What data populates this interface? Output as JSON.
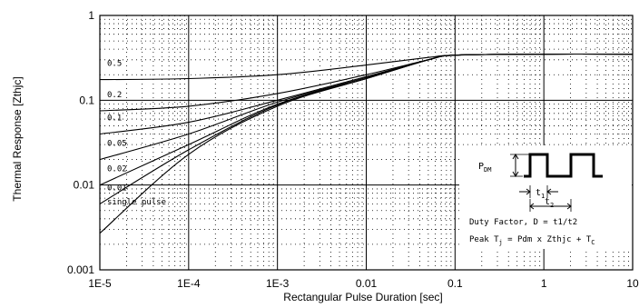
{
  "chart_data": {
    "type": "line",
    "xlabel": "Rectangular Pulse Duration [sec]",
    "ylabel": "Thermal Response [Zthjc]",
    "xscale": "log",
    "yscale": "log",
    "xlim": [
      1e-05,
      10
    ],
    "ylim": [
      0.001,
      1
    ],
    "grid": "major and minor (dotted)",
    "x_tick_labels": [
      "1E-5",
      "1E-4",
      "1E-3",
      "0.01",
      "0.1",
      "1",
      "10"
    ],
    "y_tick_labels": [
      "0.001",
      "0.01",
      "0.1",
      "1"
    ],
    "series": [
      {
        "name": "0.5",
        "x": [
          1e-05,
          0.0001,
          0.001,
          0.01,
          0.05,
          0.1,
          1,
          10
        ],
        "values": [
          0.175,
          0.18,
          0.2,
          0.26,
          0.32,
          0.34,
          0.35,
          0.35
        ]
      },
      {
        "name": "0.2",
        "x": [
          1e-05,
          0.0001,
          0.001,
          0.01,
          0.05,
          0.1,
          1,
          10
        ],
        "values": [
          0.075,
          0.085,
          0.12,
          0.2,
          0.3,
          0.34,
          0.35,
          0.35
        ]
      },
      {
        "name": "0.1",
        "x": [
          1e-05,
          0.0001,
          0.001,
          0.01,
          0.05,
          0.1,
          1,
          10
        ],
        "values": [
          0.04,
          0.055,
          0.1,
          0.19,
          0.3,
          0.34,
          0.35,
          0.35
        ]
      },
      {
        "name": "0.05",
        "x": [
          1e-05,
          0.0001,
          0.001,
          0.01,
          0.05,
          0.1,
          1,
          10
        ],
        "values": [
          0.02,
          0.04,
          0.095,
          0.185,
          0.3,
          0.34,
          0.35,
          0.35
        ]
      },
      {
        "name": "0.02",
        "x": [
          1e-05,
          0.0001,
          0.001,
          0.01,
          0.05,
          0.1,
          1,
          10
        ],
        "values": [
          0.01,
          0.03,
          0.09,
          0.18,
          0.3,
          0.34,
          0.35,
          0.35
        ]
      },
      {
        "name": "0.01",
        "x": [
          1e-05,
          0.0001,
          0.001,
          0.01,
          0.05,
          0.1,
          1,
          10
        ],
        "values": [
          0.006,
          0.026,
          0.088,
          0.18,
          0.3,
          0.34,
          0.35,
          0.35
        ]
      },
      {
        "name": "single pulse",
        "x": [
          1e-05,
          0.0001,
          0.001,
          0.01,
          0.05,
          0.1,
          1,
          10
        ],
        "values": [
          0.0027,
          0.023,
          0.085,
          0.18,
          0.3,
          0.34,
          0.35,
          0.35
        ]
      }
    ],
    "inset": {
      "pdm_label": "P",
      "pdm_sub": "DM",
      "t1_label": "t",
      "t1_sub": "1",
      "t2_label": "t",
      "t2_sub": "2",
      "duty_text": "Duty Factor, D = t1/t2",
      "peak_prefix": "Peak T",
      "peak_sub": "j",
      "peak_mid": " = Pdm x Zthjc + T",
      "peak_sub2": "C"
    }
  }
}
